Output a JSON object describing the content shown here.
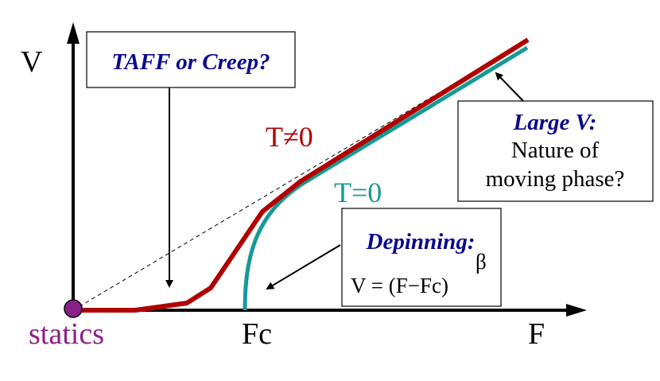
{
  "axes": {
    "y_label": "V",
    "x_label": "F",
    "x_tick": "Fc",
    "origin_label": "statics"
  },
  "curves": {
    "finite_t_label": "T≠0",
    "zero_t_label": "T=0"
  },
  "boxes": {
    "taff": {
      "title": "TAFF or Creep?"
    },
    "large_v": {
      "title": "Large V:",
      "line1": "Nature of",
      "line2": "moving phase?"
    },
    "depinning": {
      "title": "Depinning:",
      "formula": "V = (F−Fc)",
      "exponent": "β"
    }
  },
  "colors": {
    "red_curve": "#b00000",
    "teal_curve": "#169a96",
    "box_title": "#0a0a8c",
    "statics": "#8a1f8a",
    "origin_dot": "#8a1f8a"
  }
}
